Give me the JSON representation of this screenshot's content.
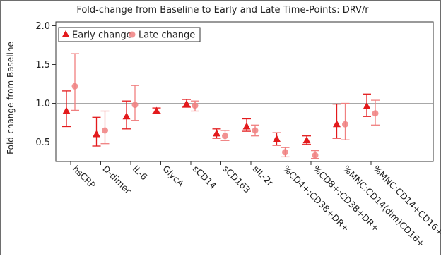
{
  "chart_data": {
    "type": "scatter",
    "title": "Fold-change from Baseline to Early and Late Time-Points: DRV/r",
    "xlabel": "",
    "ylabel": "Fold-change from Baseline",
    "ylim": [
      0.25,
      2.05
    ],
    "yticks": [
      "0.5",
      "1.0",
      "1.5",
      "2.0"
    ],
    "reference_line": 1.0,
    "legend_position": "top-left",
    "categories": [
      "hsCRP",
      "D-dimer",
      "IL-6",
      "GlycA",
      "sCD14",
      "sCD163",
      "sIL-2r",
      "%CD4+:CD38+DR+",
      "%CD8+:CD38+DR+",
      "%MNC:CD14(dim)CD16+",
      "%MNC:CD14+CD16+"
    ],
    "series": [
      {
        "name": "Early change",
        "marker": "triangle",
        "color": "#e31a1c",
        "values": [
          0.9,
          0.6,
          0.83,
          0.9,
          0.99,
          0.61,
          0.7,
          0.54,
          0.52,
          0.73,
          0.96
        ],
        "lower": [
          0.7,
          0.45,
          0.67,
          0.87,
          0.95,
          0.55,
          0.64,
          0.46,
          0.47,
          0.55,
          0.83
        ],
        "upper": [
          1.16,
          0.82,
          1.03,
          0.94,
          1.05,
          0.67,
          0.8,
          0.62,
          0.58,
          0.99,
          1.12
        ]
      },
      {
        "name": "Late change",
        "marker": "circle",
        "color": "#f08080",
        "values": [
          1.22,
          0.65,
          0.98,
          null,
          0.97,
          0.58,
          0.65,
          0.37,
          0.33,
          0.73,
          0.87
        ],
        "lower": [
          0.91,
          0.48,
          0.78,
          null,
          0.9,
          0.52,
          0.58,
          0.31,
          0.29,
          0.53,
          0.72
        ],
        "upper": [
          1.64,
          0.9,
          1.23,
          null,
          1.03,
          0.65,
          0.72,
          0.43,
          0.39,
          1.0,
          1.04
        ]
      }
    ]
  }
}
